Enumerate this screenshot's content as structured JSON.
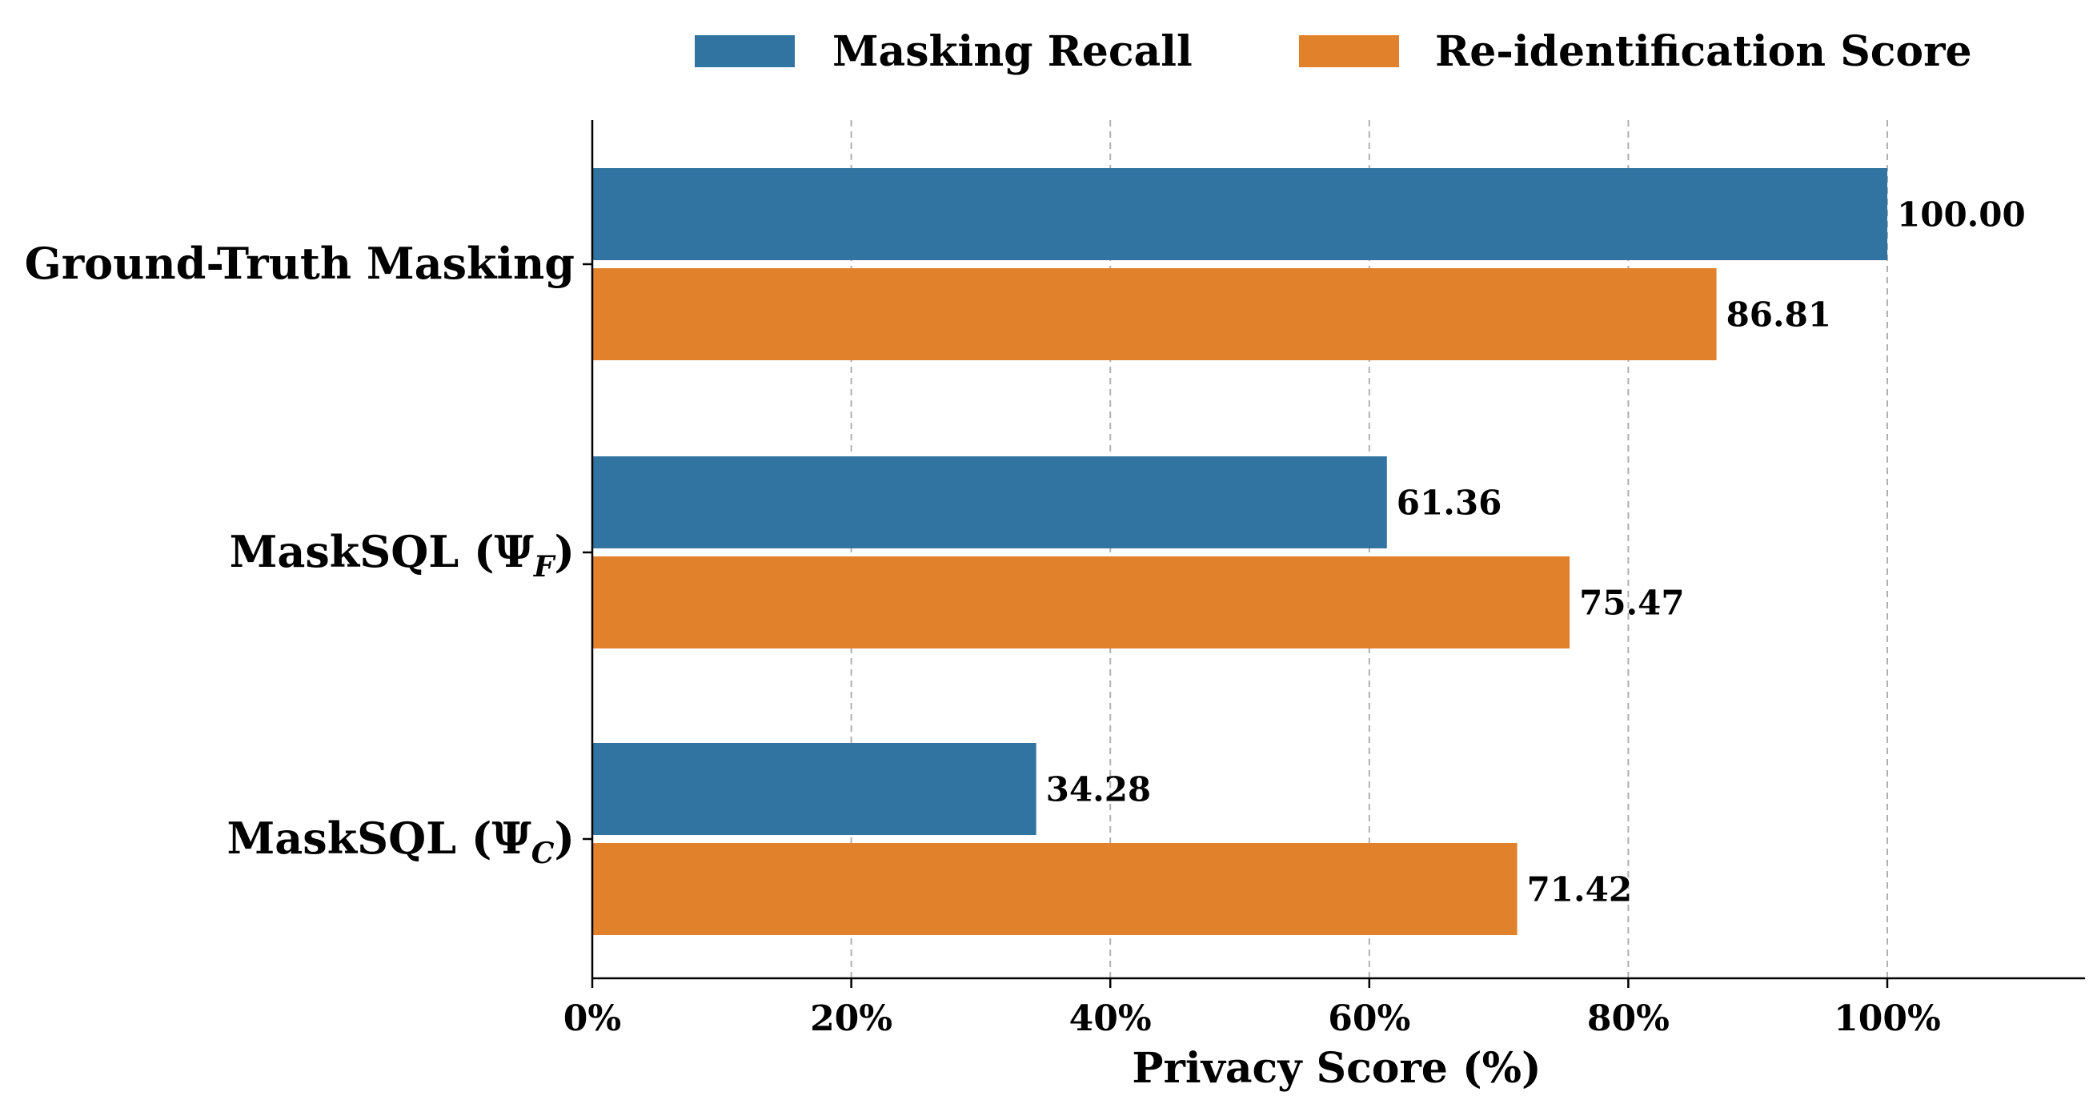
{
  "chart_data": {
    "type": "bar",
    "orientation": "horizontal",
    "title": "",
    "xlabel": "Privacy Score (%)",
    "ylabel": "",
    "xlim": [
      0,
      115
    ],
    "x_ticks": [
      0,
      20,
      40,
      60,
      80,
      100
    ],
    "x_tick_labels": [
      "0%",
      "20%",
      "40%",
      "60%",
      "80%",
      "100%"
    ],
    "grid": "vertical dashed",
    "legend_position": "top",
    "categories": [
      {
        "main": "Ground-Truth Masking",
        "sub": ""
      },
      {
        "main": "MaskSQL (Ψ",
        "sub": "F",
        "close": ")"
      },
      {
        "main": "MaskSQL (Ψ",
        "sub": "C",
        "close": ")"
      }
    ],
    "series": [
      {
        "name": "Masking Recall",
        "color": "#3274a1",
        "values": [
          100.0,
          61.36,
          34.28
        ],
        "labels": [
          "100.00",
          "61.36",
          "34.28"
        ]
      },
      {
        "name": "Re-identification Score",
        "color": "#e1812c",
        "values": [
          86.81,
          75.47,
          71.42
        ],
        "labels": [
          "86.81",
          "75.47",
          "71.42"
        ]
      }
    ]
  }
}
